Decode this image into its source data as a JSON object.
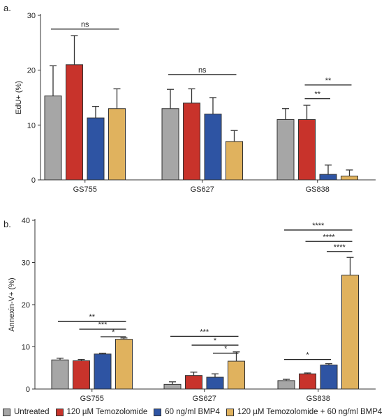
{
  "chart_data": [
    {
      "type": "bar",
      "panel_label": "a.",
      "ylabel": "EdU+ (%)",
      "ylim": [
        0,
        30
      ],
      "yticks": [
        "0",
        "10",
        "20",
        "30"
      ],
      "categories": [
        "GS755",
        "GS627",
        "GS838"
      ],
      "series": [
        {
          "name": "Untreated",
          "color": "#a6a6a6",
          "values": [
            15.3,
            13.0,
            11.0
          ],
          "errors": [
            5.5,
            3.5,
            2.0
          ]
        },
        {
          "name": "120 µM Temozolomide",
          "color": "#c8332b",
          "values": [
            21.0,
            14.0,
            11.0
          ],
          "errors": [
            5.3,
            2.6,
            2.6
          ]
        },
        {
          "name": "60 ng/ml BMP4",
          "color": "#2e54a3",
          "values": [
            11.3,
            12.0,
            1.0
          ],
          "errors": [
            2.1,
            3.0,
            1.7
          ]
        },
        {
          "name": "120 µM Temozolomide + 60 ng/ml BMP4",
          "color": "#e0b25e",
          "values": [
            13.0,
            7.0,
            0.7
          ],
          "errors": [
            3.6,
            2.0,
            1.1
          ]
        }
      ],
      "annotations": [
        {
          "text": "ns",
          "group": 0,
          "from": 0,
          "to": 3,
          "y": 27.5
        },
        {
          "text": "ns",
          "group": 1,
          "from": 0,
          "to": 3,
          "y": 19.2
        },
        {
          "text": "**",
          "group": 2,
          "from": 1,
          "to": 3,
          "y": 17.3
        },
        {
          "text": "**",
          "group": 2,
          "from": 1,
          "to": 2,
          "y": 14.8
        }
      ]
    },
    {
      "type": "bar",
      "panel_label": "b.",
      "ylabel": "Annexin-V+ (%)",
      "ylim": [
        0,
        40
      ],
      "yticks": [
        "0",
        "10",
        "20",
        "30",
        "40"
      ],
      "categories": [
        "GS755",
        "GS627",
        "GS838"
      ],
      "series": [
        {
          "name": "Untreated",
          "color": "#a6a6a6",
          "values": [
            6.9,
            1.1,
            2.0
          ],
          "errors": [
            0.4,
            0.6,
            0.3
          ]
        },
        {
          "name": "120 µM Temozolomide",
          "color": "#c8332b",
          "values": [
            6.7,
            3.2,
            3.6
          ],
          "errors": [
            0.3,
            0.8,
            0.2
          ]
        },
        {
          "name": "60 ng/ml BMP4",
          "color": "#2e54a3",
          "values": [
            8.3,
            2.8,
            5.7
          ],
          "errors": [
            0.2,
            0.8,
            0.3
          ]
        },
        {
          "name": "120 µM Temozolomide + 60 ng/ml BMP4",
          "color": "#e0b25e",
          "values": [
            11.8,
            6.6,
            27.0
          ],
          "errors": [
            0.3,
            2.2,
            4.2
          ]
        }
      ],
      "annotations": [
        {
          "text": "**",
          "group": 0,
          "from": 0,
          "to": 3,
          "y": 16.0
        },
        {
          "text": "***",
          "group": 0,
          "from": 1,
          "to": 3,
          "y": 14.2
        },
        {
          "text": "*",
          "group": 0,
          "from": 2,
          "to": 3,
          "y": 12.4
        },
        {
          "text": "***",
          "group": 1,
          "from": 0,
          "to": 3,
          "y": 12.5
        },
        {
          "text": "*",
          "group": 1,
          "from": 1,
          "to": 3,
          "y": 10.4
        },
        {
          "text": "*",
          "group": 1,
          "from": 2,
          "to": 3,
          "y": 8.5
        },
        {
          "text": "*",
          "group": 2,
          "from": 0,
          "to": 2,
          "y": 7.0
        },
        {
          "text": "****",
          "group": 2,
          "from": 0,
          "to": 3,
          "y": 37.7
        },
        {
          "text": "****",
          "group": 2,
          "from": 1,
          "to": 3,
          "y": 35.0
        },
        {
          "text": "****",
          "group": 2,
          "from": 2,
          "to": 3,
          "y": 32.6
        }
      ]
    }
  ],
  "legend": [
    {
      "label": "Untreated",
      "color": "#a6a6a6"
    },
    {
      "label": "120 µM Temozolomide",
      "color": "#c8332b"
    },
    {
      "label": "60 ng/ml BMP4",
      "color": "#2e54a3"
    },
    {
      "label": "120 µM Temozolomide + 60 ng/ml BMP4",
      "color": "#e0b25e"
    }
  ]
}
